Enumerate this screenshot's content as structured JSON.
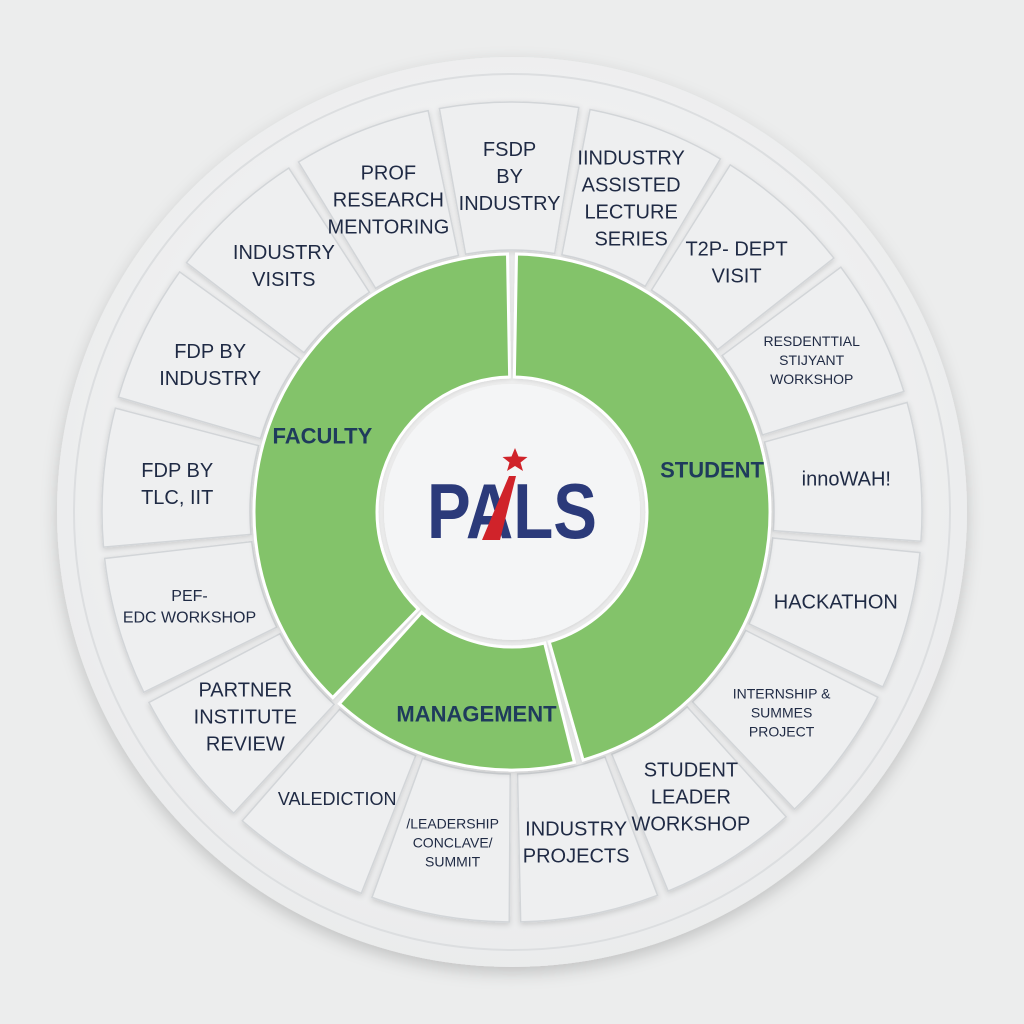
{
  "center": {
    "logo_text": "PALS",
    "colors": {
      "navy": "#2b3a7a",
      "red": "#d0232a"
    }
  },
  "core": [
    {
      "label": "FACULTY",
      "color": "#83c36b"
    },
    {
      "label": "STUDENT",
      "color": "#83c36b"
    },
    {
      "label": "MANAGEMENT",
      "color": "#83c36b"
    }
  ],
  "segments": [
    {
      "lines": [
        "FSDP",
        "BY",
        "INDUSTRY"
      ]
    },
    {
      "lines": [
        "IINDUSTRY",
        "ASSISTED",
        "LECTURE",
        "SERIES"
      ]
    },
    {
      "lines": [
        "T2P- DEPT",
        "VISIT"
      ]
    },
    {
      "lines": [
        "RESDENTTIAL",
        "STIJYANT",
        "WORKSHOP"
      ]
    },
    {
      "lines": [
        "innoWAH!"
      ]
    },
    {
      "lines": [
        "HACKATHON"
      ]
    },
    {
      "lines": [
        "INTERNSHIP &",
        "SUMMES",
        "PROJECT"
      ]
    },
    {
      "lines": [
        "STUDENT",
        "LEADER",
        "WORKSHOP"
      ]
    },
    {
      "lines": [
        "INDUSTRY",
        "PROJECTS"
      ]
    },
    {
      "lines": [
        "/LEADERSHIP",
        "CONCLAVE/",
        "SUMMIT"
      ]
    },
    {
      "lines": [
        "VALEDICTION"
      ]
    },
    {
      "lines": [
        "PARTNER",
        "INSTITUTE",
        "REVIEW"
      ]
    },
    {
      "lines": [
        "PEF-",
        "EDC WORKSHOP"
      ]
    },
    {
      "lines": [
        "FDP BY",
        "TLC, IIT"
      ]
    },
    {
      "lines": [
        "FDP BY",
        "INDUSTRY"
      ]
    },
    {
      "lines": [
        "INDUSTRY",
        "VISITS"
      ]
    },
    {
      "lines": [
        "PROF",
        "RESEARCH",
        "MENTORING"
      ]
    }
  ],
  "colors": {
    "background": "#eceded",
    "plate": "#f6f7f7",
    "tile": "#eeeff0",
    "tile_stroke": "#d2d5d8",
    "text": "#1f2a44"
  }
}
